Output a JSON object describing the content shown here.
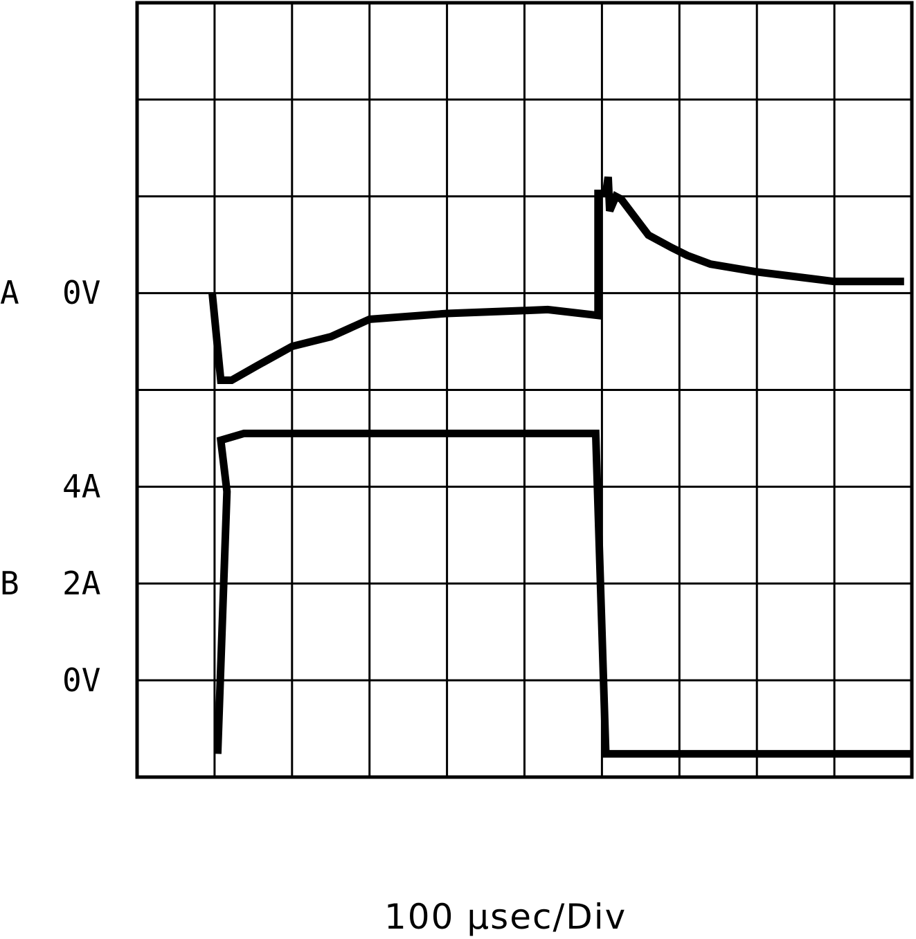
{
  "chart_data": {
    "type": "line",
    "grid": true,
    "divisions": {
      "x": 10,
      "y": 8
    },
    "axis_labels": {
      "a_channel": "A",
      "a_zero": "0V",
      "b_4a": "4A",
      "b_channel": "B",
      "b_2a": "2A",
      "b_zero": "0V"
    },
    "xlabel": "100 µsec/Div",
    "xlim": [
      0,
      10
    ],
    "ylim": [
      0,
      8
    ],
    "series": [
      {
        "id": "A",
        "color": "#000000",
        "points": [
          [
            0.97,
            5.0
          ],
          [
            1.08,
            4.1
          ],
          [
            1.22,
            4.1
          ],
          [
            1.55,
            4.25
          ],
          [
            2.0,
            4.45
          ],
          [
            2.5,
            4.55
          ],
          [
            3.0,
            4.73
          ],
          [
            4.0,
            4.79
          ],
          [
            5.0,
            4.82
          ],
          [
            5.3,
            4.83
          ],
          [
            5.95,
            4.77
          ],
          [
            5.95,
            6.03
          ],
          [
            6.05,
            6.03
          ],
          [
            6.08,
            6.2
          ],
          [
            6.1,
            5.85
          ],
          [
            6.18,
            6.0
          ],
          [
            6.25,
            5.97
          ],
          [
            6.6,
            5.6
          ],
          [
            6.9,
            5.47
          ],
          [
            7.1,
            5.39
          ],
          [
            7.4,
            5.3
          ],
          [
            8.0,
            5.22
          ],
          [
            9.0,
            5.12
          ],
          [
            9.9,
            5.12
          ]
        ]
      },
      {
        "id": "B",
        "color": "#000000",
        "points": [
          [
            1.04,
            0.24
          ],
          [
            1.16,
            2.95
          ],
          [
            1.08,
            3.48
          ],
          [
            1.38,
            3.55
          ],
          [
            2.0,
            3.55
          ],
          [
            4.0,
            3.55
          ],
          [
            5.92,
            3.55
          ],
          [
            6.05,
            0.24
          ],
          [
            8.0,
            0.24
          ],
          [
            10.0,
            0.24
          ]
        ]
      }
    ]
  }
}
